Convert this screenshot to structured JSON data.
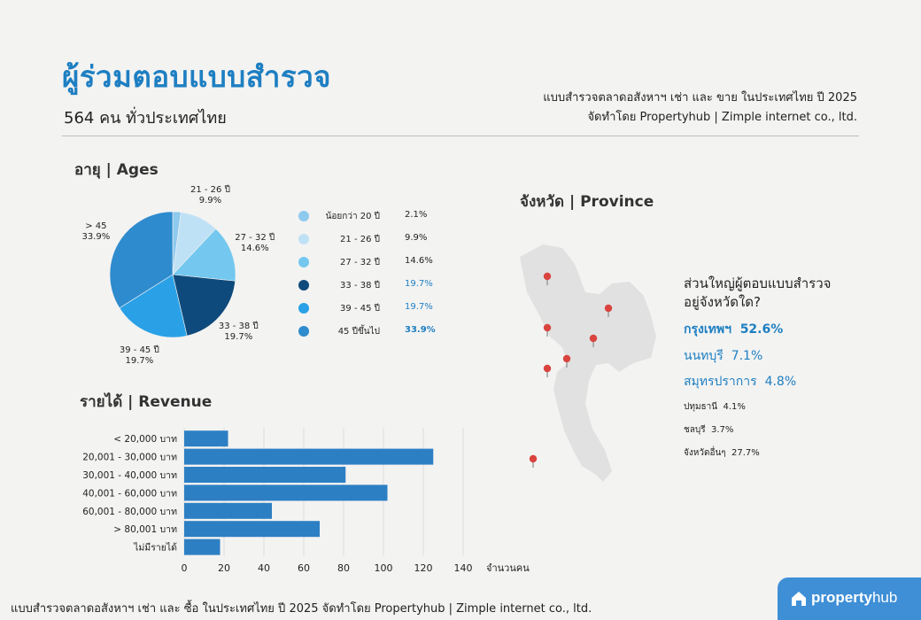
{
  "header": {
    "title": "ผู้ร่วมตอบแบบสำรวจ",
    "subtitle": "564 คน ทั่วประเทศไทย",
    "right_line1": "แบบสำรวจตลาดอสังหาฯ เช่า และ ขาย ในประเทศไทย ปี 2025",
    "right_line2": "จัดทำโดย Propertyhub | Zimple internet co., ltd."
  },
  "sections": {
    "ages": "อายุ | Ages",
    "revenue": "รายได้ | Revenue",
    "province": "จังหวัด | Province"
  },
  "colors": {
    "accent": "#1e7fc2",
    "map_fill": "#e1e1e1",
    "pin": "#d9443f"
  },
  "chart_data": [
    {
      "type": "pie",
      "title": "อายุ | Ages",
      "slices": [
        {
          "label": "น้อยกว่า 20 ปี",
          "pie_label": "",
          "value": 2.1,
          "value_text": "2.1%",
          "color": "#8ec9ee",
          "highlight": false
        },
        {
          "label": "21 - 26 ปี",
          "pie_label": "21 - 26 ปี",
          "value": 9.9,
          "value_text": "9.9%",
          "color": "#bfe1f5",
          "highlight": false
        },
        {
          "label": "27 - 32 ปี",
          "pie_label": "27 - 32 ปี",
          "value": 14.6,
          "value_text": "14.6%",
          "color": "#74c8ef",
          "highlight": false
        },
        {
          "label": "33 - 38 ปี",
          "pie_label": "33 - 38 ปี",
          "value": 19.7,
          "value_text": "19.7%",
          "color": "#0f4a7c",
          "highlight": true
        },
        {
          "label": "39 - 45 ปี",
          "pie_label": "39 - 45 ปี",
          "value": 19.7,
          "value_text": "19.7%",
          "color": "#2aa1e6",
          "highlight": true
        },
        {
          "label": "45 ปีขึ้นไป",
          "pie_label": "> 45",
          "value": 33.9,
          "value_text": "33.9%",
          "color": "#2e8bcd",
          "highlight": true,
          "bold": true
        }
      ]
    },
    {
      "type": "bar",
      "orientation": "horizontal",
      "title": "รายได้ | Revenue",
      "xlabel": "จำนวนคน",
      "categories": [
        "< 20,000 บาท",
        "20,001 - 30,000 บาท",
        "30,001 - 40,000 บาท",
        "40,001 - 60,000 บาท",
        "60,001 - 80,000 บาท",
        "> 80,001 บาท",
        "ไม่มีรายได้"
      ],
      "values": [
        22,
        125,
        81,
        102,
        44,
        68,
        18
      ],
      "xlim": [
        0,
        140
      ],
      "xticks": [
        0,
        20,
        40,
        60,
        80,
        100,
        120,
        140
      ],
      "bar_color": "#2d7fc4"
    }
  ],
  "province": {
    "question": [
      "ส่วนใหญ่ผู้ตอบแบบสำรวจ",
      "อยู่จังหวัดใด?"
    ],
    "top": [
      {
        "name": "กรุงเทพฯ",
        "value": "52.6%",
        "bold": true
      },
      {
        "name": "นนทบุรี",
        "value": "7.1%"
      },
      {
        "name": "สมุทรปราการ",
        "value": "4.8%"
      }
    ],
    "others": [
      {
        "name": "ปทุมธานี",
        "value": "4.1%"
      },
      {
        "name": "ชลบุรี",
        "value": "3.7%"
      },
      {
        "name": "จังหวัดอื่นๆ",
        "value": "27.7%"
      }
    ]
  },
  "footer": "แบบสำรวจตลาดอสังหาฯ เช่า และ ซื้อ ในประเทศไทย ปี 2025  จัดทำโดย Propertyhub | Zimple internet co., ltd.",
  "logo": {
    "prefix": "property",
    "suffix": "hub",
    "icon": "house-icon"
  }
}
